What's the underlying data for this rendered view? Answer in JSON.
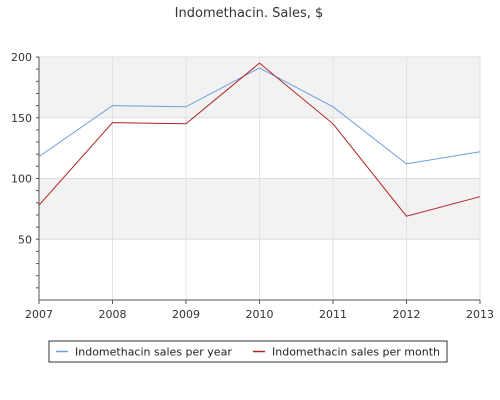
{
  "chart_data": {
    "type": "line",
    "title": "Indomethacin. Sales, $",
    "xlabel": "",
    "ylabel": "",
    "x": [
      "2007",
      "2008",
      "2009",
      "2010",
      "2011",
      "2012",
      "2013"
    ],
    "ylim": [
      0,
      200
    ],
    "yticks": [
      50,
      100,
      150,
      200
    ],
    "ytick_labels": [
      "50",
      "100",
      "150",
      "200"
    ],
    "grid": true,
    "legend_position": "bottom",
    "series": [
      {
        "name": "Indomethacin sales per year",
        "color": "#6a9fe0",
        "values": [
          118,
          160,
          159,
          191,
          159,
          112,
          122
        ]
      },
      {
        "name": "Indomethacin sales per month",
        "color": "#b22222",
        "values": [
          78,
          146,
          145,
          195,
          145,
          69,
          85
        ]
      }
    ],
    "band_color": "#f2f2f2"
  }
}
